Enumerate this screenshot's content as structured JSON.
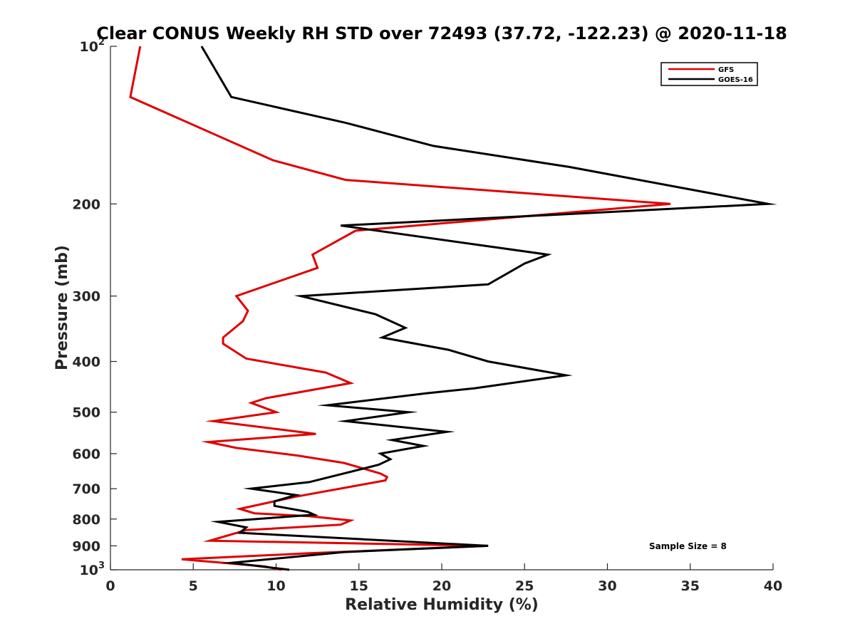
{
  "chart_data": {
    "type": "line",
    "title": "Clear CONUS Weekly RH STD over 72493 (37.72, -122.23) @ 2020-11-18",
    "xlabel": "Relative Humidity (%)",
    "ylabel": "Pressure (mb)",
    "xlim": [
      0,
      40
    ],
    "ylim": [
      100,
      1000
    ],
    "y_scale": "log",
    "y_reversed": true,
    "grid": false,
    "legend_position": "top-right",
    "x_ticks": [
      {
        "value": 0,
        "label": "0"
      },
      {
        "value": 5,
        "label": "5"
      },
      {
        "value": 10,
        "label": "10"
      },
      {
        "value": 15,
        "label": "15"
      },
      {
        "value": 20,
        "label": "20"
      },
      {
        "value": 25,
        "label": "25"
      },
      {
        "value": 30,
        "label": "30"
      },
      {
        "value": 35,
        "label": "35"
      },
      {
        "value": 40,
        "label": "40"
      }
    ],
    "y_ticks": [
      {
        "value": 100,
        "base": "10",
        "exp": "2"
      },
      {
        "value": 200,
        "base": "200",
        "exp": ""
      },
      {
        "value": 300,
        "base": "300",
        "exp": ""
      },
      {
        "value": 400,
        "base": "400",
        "exp": ""
      },
      {
        "value": 500,
        "base": "500",
        "exp": ""
      },
      {
        "value": 600,
        "base": "600",
        "exp": ""
      },
      {
        "value": 700,
        "base": "700",
        "exp": ""
      },
      {
        "value": 800,
        "base": "800",
        "exp": ""
      },
      {
        "value": 900,
        "base": "900",
        "exp": ""
      },
      {
        "value": 1000,
        "base": "10",
        "exp": "3"
      }
    ],
    "annotation": "Sample Size = 8",
    "series": [
      {
        "name": "GFS",
        "color": "#e00000",
        "points": [
          [
            1.8,
            100
          ],
          [
            1.2,
            125
          ],
          [
            9.8,
            165
          ],
          [
            14.2,
            180
          ],
          [
            33.8,
            200
          ],
          [
            14.8,
            225
          ],
          [
            12.2,
            250
          ],
          [
            12.5,
            265
          ],
          [
            7.6,
            300
          ],
          [
            8.3,
            320
          ],
          [
            8.0,
            335
          ],
          [
            6.8,
            360
          ],
          [
            6.8,
            370
          ],
          [
            8.2,
            395
          ],
          [
            13.0,
            420
          ],
          [
            14.5,
            440
          ],
          [
            9.4,
            470
          ],
          [
            8.5,
            480
          ],
          [
            10.0,
            500
          ],
          [
            6.2,
            520
          ],
          [
            12.4,
            550
          ],
          [
            5.9,
            570
          ],
          [
            7.6,
            585
          ],
          [
            11.3,
            605
          ],
          [
            14.1,
            625
          ],
          [
            16.3,
            655
          ],
          [
            16.7,
            665
          ],
          [
            16.6,
            675
          ],
          [
            11.2,
            725
          ],
          [
            7.8,
            765
          ],
          [
            8.7,
            780
          ],
          [
            12.0,
            790
          ],
          [
            14.5,
            805
          ],
          [
            13.9,
            820
          ],
          [
            8.2,
            840
          ],
          [
            6.0,
            880
          ],
          [
            22.8,
            900
          ],
          [
            12.0,
            930
          ],
          [
            4.3,
            955
          ],
          [
            9.3,
            985
          ],
          [
            10.3,
            1000
          ]
        ]
      },
      {
        "name": "GOES-16",
        "color": "#000000",
        "points": [
          [
            5.5,
            100
          ],
          [
            7.3,
            125
          ],
          [
            14.2,
            140
          ],
          [
            19.5,
            155
          ],
          [
            27.7,
            170
          ],
          [
            39.7,
            200
          ],
          [
            13.9,
            220
          ],
          [
            26.4,
            250
          ],
          [
            25.0,
            260
          ],
          [
            22.8,
            285
          ],
          [
            11.5,
            300
          ],
          [
            16.0,
            325
          ],
          [
            17.8,
            345
          ],
          [
            16.4,
            360
          ],
          [
            20.4,
            380
          ],
          [
            22.8,
            400
          ],
          [
            27.5,
            425
          ],
          [
            22.0,
            450
          ],
          [
            19.1,
            460
          ],
          [
            13.1,
            485
          ],
          [
            18.0,
            500
          ],
          [
            14.2,
            520
          ],
          [
            20.3,
            545
          ],
          [
            17.0,
            565
          ],
          [
            18.9,
            580
          ],
          [
            16.3,
            600
          ],
          [
            16.9,
            615
          ],
          [
            16.2,
            630
          ],
          [
            12.0,
            680
          ],
          [
            8.5,
            700
          ],
          [
            11.2,
            720
          ],
          [
            9.9,
            740
          ],
          [
            9.9,
            755
          ],
          [
            11.9,
            775
          ],
          [
            12.3,
            785
          ],
          [
            6.5,
            810
          ],
          [
            8.2,
            830
          ],
          [
            7.8,
            850
          ],
          [
            22.8,
            900
          ],
          [
            14.1,
            925
          ],
          [
            7.3,
            970
          ],
          [
            10.8,
            1000
          ]
        ]
      }
    ]
  }
}
